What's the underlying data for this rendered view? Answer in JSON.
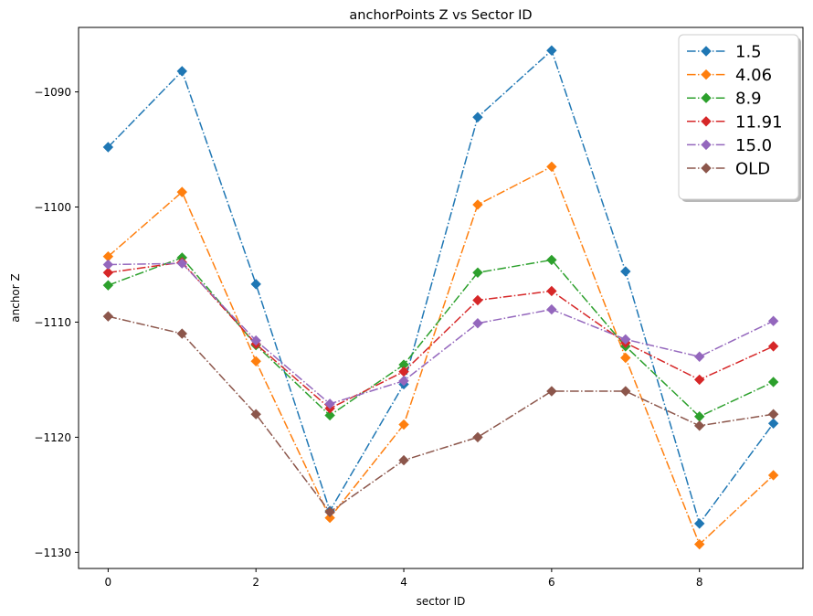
{
  "chart_data": {
    "type": "line",
    "title": "anchorPoints Z vs Sector ID",
    "xlabel": "sector ID",
    "ylabel": "anchor Z",
    "xlim": [
      -0.4,
      9.4
    ],
    "ylim": [
      -1131.4,
      -1084.4
    ],
    "xticks": [
      0,
      2,
      4,
      6,
      8
    ],
    "yticks": [
      -1090,
      -1100,
      -1110,
      -1120,
      -1130
    ],
    "ytick_labels": [
      "−1090",
      "−1100",
      "−1110",
      "−1120",
      "−1130"
    ],
    "grid": false,
    "legend_position": "top-right",
    "line_style": "dash-dot",
    "marker": "diamond",
    "x": [
      0,
      1,
      2,
      3,
      4,
      5,
      6,
      7,
      8,
      9
    ],
    "series": [
      {
        "name": "1.5",
        "color": "#1f77b4",
        "values": [
          -1094.8,
          -1088.2,
          -1106.7,
          -1126.4,
          -1115.4,
          -1092.2,
          -1086.4,
          -1105.6,
          -1127.5,
          -1118.8
        ]
      },
      {
        "name": "4.06",
        "color": "#ff7f0e",
        "values": [
          -1104.3,
          -1098.7,
          -1113.4,
          -1127.0,
          -1118.9,
          -1099.8,
          -1096.5,
          -1113.1,
          -1129.3,
          -1123.3
        ]
      },
      {
        "name": "8.9",
        "color": "#2ca02c",
        "values": [
          -1106.8,
          -1104.4,
          -1112.0,
          -1118.1,
          -1113.7,
          -1105.7,
          -1104.6,
          -1112.1,
          -1118.2,
          -1115.2
        ]
      },
      {
        "name": "11.91",
        "color": "#d62728",
        "values": [
          -1105.7,
          -1104.8,
          -1111.9,
          -1117.5,
          -1114.3,
          -1108.1,
          -1107.3,
          -1111.8,
          -1115.0,
          -1112.1
        ]
      },
      {
        "name": "15.0",
        "color": "#9467bd",
        "values": [
          -1105.0,
          -1104.9,
          -1111.6,
          -1117.1,
          -1115.1,
          -1110.1,
          -1108.9,
          -1111.5,
          -1113.0,
          -1109.9
        ]
      },
      {
        "name": "OLD",
        "color": "#8c564b",
        "values": [
          -1109.5,
          -1111.0,
          -1118.0,
          -1126.5,
          -1122.0,
          -1120.0,
          -1116.0,
          -1116.0,
          -1119.0,
          -1118.0
        ]
      }
    ]
  }
}
